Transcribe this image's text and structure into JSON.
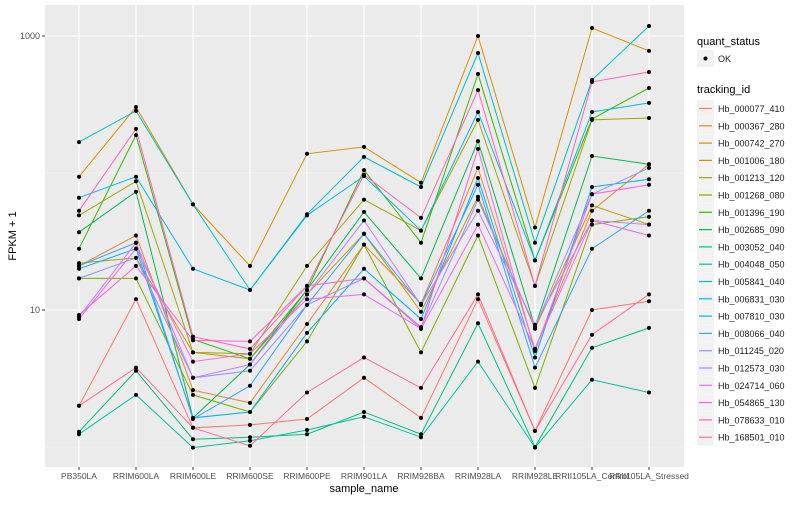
{
  "chart_data": {
    "type": "line",
    "title": "",
    "xlabel": "sample_name",
    "ylabel": "FPKM + 1",
    "y_scale": "log10",
    "ylim": [
      0.71,
      1710
    ],
    "y_ticks": [
      {
        "value": 10,
        "label": "10"
      },
      {
        "value": 1000,
        "label": "1000"
      }
    ],
    "grid": true,
    "legend_position": "right",
    "categories": [
      "PB350LA",
      "RRIM600LA",
      "RRIM600LE",
      "RRIM600SE",
      "RRIM600PE",
      "RRIM901LA",
      "RRIM928BA",
      "RRIM928LA",
      "RRIM928LE",
      "RRII105LA_Control",
      "RRII105LA_Stressed"
    ],
    "point_legend": {
      "title": "quant_status",
      "items": [
        "OK"
      ]
    },
    "series_legend_title": "tracking_id",
    "series": [
      {
        "name": "Hb_000077_410",
        "color": "#F8766D",
        "values": [
          2.0,
          12,
          1.38,
          1.45,
          1.6,
          3.2,
          1.63,
          12,
          1.31,
          10,
          11.6
        ]
      },
      {
        "name": "Hb_000367_280",
        "color": "#EA8331",
        "values": [
          21,
          35,
          2.6,
          2.1,
          7.9,
          30,
          11.1,
          109,
          5.2,
          53,
          116
        ]
      },
      {
        "name": "Hb_000742_270",
        "color": "#D89000",
        "values": [
          94,
          303,
          59,
          21,
          138,
          155,
          85,
          1000,
          40,
          1143,
          778
        ]
      },
      {
        "name": "Hb_001006_180",
        "color": "#C09B00",
        "values": [
          22,
          24,
          4.9,
          4.4,
          13,
          36,
          9.7,
          67,
          7.3,
          58,
          42
        ]
      },
      {
        "name": "Hb_001213_120",
        "color": "#A3A500",
        "values": [
          49,
          87,
          4.9,
          4.8,
          21,
          64,
          38,
          244,
          15,
          244,
          252
        ]
      },
      {
        "name": "Hb_001268_080",
        "color": "#7CAE00",
        "values": [
          17,
          17,
          2.4,
          1.8,
          5.9,
          30,
          4.9,
          35,
          2.7,
          42,
          48
        ]
      },
      {
        "name": "Hb_001396_190",
        "color": "#39B600",
        "values": [
          28,
          189,
          6.1,
          4.4,
          14,
          105,
          31,
          528,
          23,
          248,
          417
        ]
      },
      {
        "name": "Hb_002685_090",
        "color": "#00BB4E",
        "values": [
          37,
          73,
          1.63,
          4.0,
          14,
          52,
          17,
          171,
          7.5,
          133,
          116
        ]
      },
      {
        "name": "Hb_003052_040",
        "color": "#00BF7D",
        "values": [
          1.29,
          3.6,
          1.14,
          1.18,
          1.24,
          1.8,
          1.24,
          8.0,
          1.0,
          5.3,
          7.4
        ]
      },
      {
        "name": "Hb_004048_050",
        "color": "#00C1A3",
        "values": [
          1.24,
          2.4,
          0.99,
          1.11,
          1.33,
          1.66,
          1.18,
          4.2,
          0.99,
          3.1,
          2.5
        ]
      },
      {
        "name": "Hb_005841_040",
        "color": "#00BFC4",
        "values": [
          168,
          284,
          59,
          14,
          50,
          131,
          79,
          752,
          31,
          477,
          1183
        ]
      },
      {
        "name": "Hb_006831_030",
        "color": "#00BAE0",
        "values": [
          66,
          94,
          20,
          14,
          49,
          95,
          38,
          279,
          23,
          279,
          325
        ]
      },
      {
        "name": "Hb_007810_030",
        "color": "#00B0F6",
        "values": [
          20,
          28,
          1.63,
          1.8,
          6.8,
          20,
          8.6,
          92,
          4.5,
          79,
          90
        ]
      },
      {
        "name": "Hb_008066_040",
        "color": "#35A2FF",
        "values": [
          21,
          31,
          1.6,
          2.8,
          10.9,
          36,
          10.9,
          82,
          3.8,
          28,
          53
        ]
      },
      {
        "name": "Hb_011245_020",
        "color": "#9590FF",
        "values": [
          17,
          24,
          3.2,
          3.6,
          10.9,
          17,
          7.5,
          64,
          7.5,
          70,
          109
        ]
      },
      {
        "name": "Hb_012573_030",
        "color": "#C77CFF",
        "values": [
          8.9,
          31,
          3.2,
          4.0,
          13,
          45,
          10.9,
          53,
          7.8,
          45,
          42
        ]
      },
      {
        "name": "Hb_024714_060",
        "color": "#E76BF3",
        "values": [
          8.6,
          28,
          4.2,
          4.8,
          12,
          13,
          7.3,
          42,
          5.2,
          45,
          35
        ]
      },
      {
        "name": "Hb_054865_130",
        "color": "#FA62DB",
        "values": [
          9.2,
          21,
          6.0,
          5.9,
          15,
          17,
          7.3,
          150,
          5.0,
          70,
          82
        ]
      },
      {
        "name": "Hb_078633_010",
        "color": "#FF62BC",
        "values": [
          53,
          210,
          6.4,
          5.2,
          15,
          97,
          47,
          403,
          15,
          462,
          546
        ]
      },
      {
        "name": "Hb_168501_010",
        "color": "#FF6C91",
        "values": [
          2.0,
          3.8,
          1.38,
          1.02,
          2.5,
          4.5,
          2.7,
          13,
          1.31,
          6.6,
          13
        ]
      }
    ]
  }
}
